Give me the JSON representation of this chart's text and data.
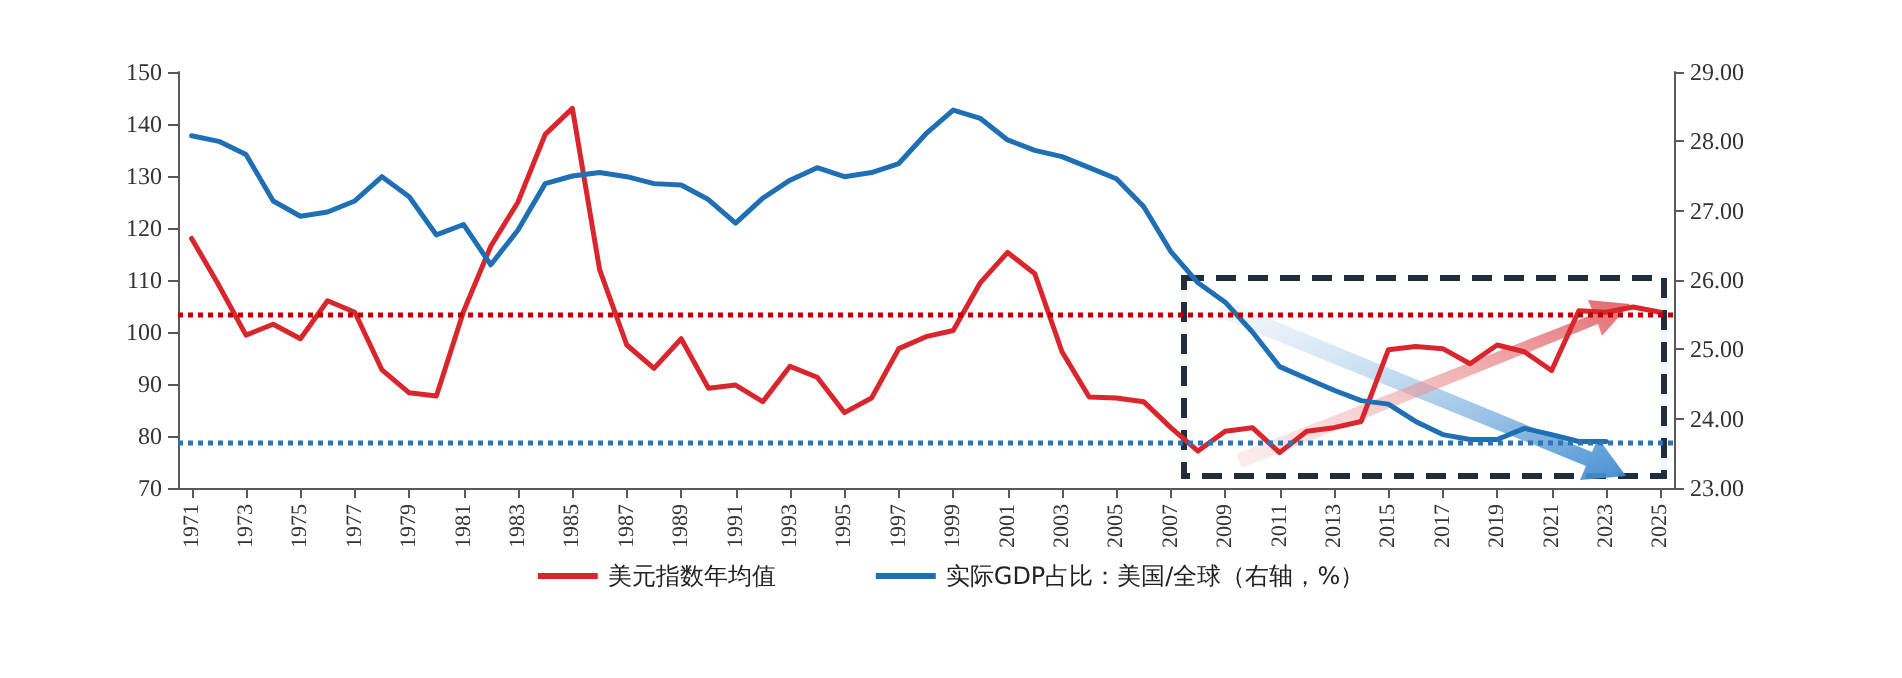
{
  "chart_data": {
    "type": "line",
    "categories": [
      "1971",
      null,
      "1973",
      null,
      "1975",
      null,
      "1977",
      null,
      "1979",
      null,
      "1981",
      null,
      "1983",
      null,
      "1985",
      null,
      "1987",
      null,
      "1989",
      null,
      "1991",
      null,
      "1993",
      null,
      "1995",
      null,
      "1997",
      null,
      "1999",
      null,
      "2001",
      null,
      "2003",
      null,
      "2005",
      null,
      "2007",
      null,
      "2009",
      null,
      "2011",
      null,
      "2013",
      null,
      "2015",
      null,
      "2017",
      null,
      "2019",
      null,
      "2021",
      null,
      "2023",
      null,
      "2025"
    ],
    "series": [
      {
        "name": "美元指数年均值",
        "color": "#d9262c",
        "values": [
          118,
          109,
          99.4,
          101.5,
          98.7,
          106,
          103.8,
          92.7,
          88.3,
          87.7,
          104,
          116.5,
          125,
          138,
          143,
          112,
          97.5,
          93,
          98.7,
          89.2,
          89.8,
          86.6,
          93.4,
          91.3,
          84.5,
          87.3,
          96.8,
          99.1,
          100.3,
          109.5,
          115.3,
          111.2,
          96.2,
          87.5,
          87.3,
          86.6,
          81.6,
          77.1,
          80.9,
          81.6,
          76.8,
          80.9,
          81.6,
          82.8,
          96.6,
          97.2,
          96.8,
          93.9,
          97.5,
          96.2,
          92.6,
          104.1,
          103.8,
          104.8,
          103.8
        ]
      },
      {
        "name": "实际GDP占比：美国/全球（右轴，%）",
        "color": "#1f6fb5",
        "axis": "y2",
        "values": [
          28.08,
          28.0,
          27.81,
          27.14,
          26.92,
          26.98,
          27.14,
          27.49,
          27.2,
          26.65,
          26.8,
          26.22,
          26.72,
          27.39,
          27.5,
          27.55,
          27.49,
          27.39,
          27.37,
          27.16,
          26.82,
          27.18,
          27.44,
          27.62,
          27.49,
          27.55,
          27.68,
          28.11,
          28.45,
          28.33,
          28.02,
          27.87,
          27.78,
          27.62,
          27.46,
          27.06,
          26.41,
          25.96,
          25.68,
          25.25,
          24.75,
          24.58,
          24.41,
          24.26,
          24.21,
          23.96,
          23.77,
          23.7,
          23.7,
          23.86,
          23.77,
          23.67,
          23.67,
          null,
          null
        ]
      }
    ],
    "ylim": [
      70,
      150
    ],
    "yticks": [
      70,
      80,
      90,
      100,
      110,
      120,
      130,
      140,
      150
    ],
    "y2lim": [
      23,
      29
    ],
    "y2ticks": [
      {
        "value": 23,
        "label": "23.00"
      },
      {
        "value": 24,
        "label": "24.00"
      },
      {
        "value": 25,
        "label": "25.00"
      },
      {
        "value": 26,
        "label": "26.00"
      },
      {
        "value": 27,
        "label": "27.00"
      },
      {
        "value": 28,
        "label": "28.00"
      },
      {
        "value": 29,
        "label": "29.00"
      }
    ],
    "ref_lines": [
      {
        "axis": "y",
        "value": 103.4,
        "color": "#c00000",
        "line_style": "dotted"
      },
      {
        "axis": "y2",
        "value": 23.65,
        "color": "#2e75b6",
        "line_style": "dotted"
      }
    ],
    "grid": false,
    "legend": "bottom",
    "marker": "none",
    "line_style": "solid"
  }
}
